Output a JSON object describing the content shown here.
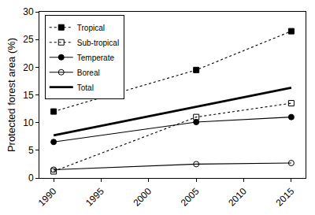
{
  "chart_data": {
    "type": "line",
    "y_label": "Protected forest area (%)",
    "x": [
      1990,
      2005,
      2015
    ],
    "series": [
      {
        "name": "Tropical",
        "color": "#000000",
        "marker": "square",
        "line_style": "dot",
        "values": [
          12,
          19.5,
          26.5
        ]
      },
      {
        "name": "Sub-tropical",
        "color": "#000000",
        "marker": "square-open",
        "line_style": "dot",
        "values": [
          1.2,
          11,
          13.5
        ]
      },
      {
        "name": "Temperate",
        "color": "#000000",
        "marker": "circle",
        "line_style": "solid",
        "values": [
          6.5,
          10.1,
          11
        ]
      },
      {
        "name": "Boreal",
        "color": "#000000",
        "marker": "circle-open",
        "line_style": "solid",
        "values": [
          1.5,
          2.5,
          2.7
        ]
      },
      {
        "name": "Total",
        "color": "#000000",
        "marker": "none",
        "line_style": "bold",
        "values": [
          7.7,
          12.9,
          16.3
        ]
      }
    ],
    "xlim": [
      1988.5,
      2016.5
    ],
    "xticks": [
      1990,
      1995,
      2000,
      2005,
      2010,
      2015
    ],
    "ylim": [
      0,
      30
    ],
    "yticks": [
      0,
      5,
      10,
      15,
      20,
      25,
      30
    ],
    "grid": false,
    "legend": "top-left"
  }
}
